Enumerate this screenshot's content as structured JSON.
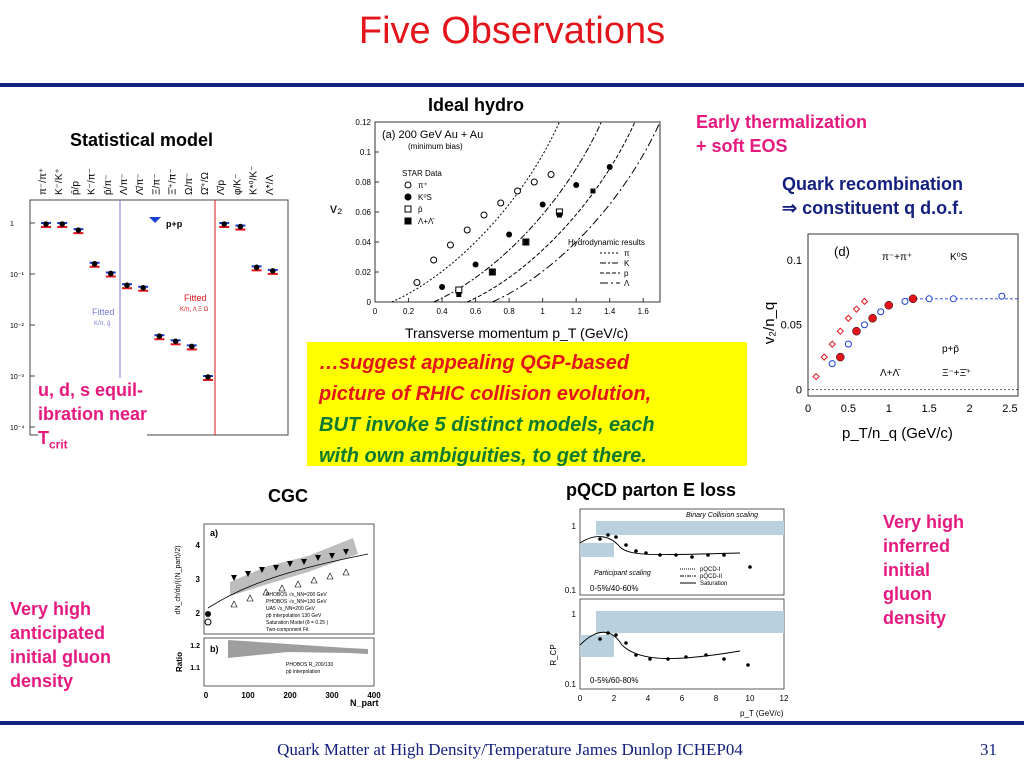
{
  "slide": {
    "title": "Five Observations",
    "footer": "Quark Matter at High Density/Temperature James Dunlop ICHEP04",
    "page_number": "31",
    "colors": {
      "title": "#e4141b",
      "rule": "#14207e",
      "pink": "#e6197f",
      "callout_bg": "#ffff00"
    }
  },
  "statistical_model": {
    "caption": "Statistical model",
    "note_lines": [
      "u, d, s equil-",
      "ibration near",
      "T"
    ],
    "note_sub": "crit",
    "ratio_labels": [
      "π⁻/π⁺",
      "K⁻/K⁺",
      "p̄/p",
      "K⁻/π⁻",
      "p̄/π⁻",
      "Λ/π⁻",
      "Λ̄/π⁻",
      "Ξ/π⁻",
      "Ξ̄⁺/π⁻",
      "Ω/π⁻",
      "Ω̄⁺/Ω",
      "Λ̄/p",
      "φ/K⁻",
      "K*⁰/K⁻",
      "Λ*/Λ"
    ],
    "y_ticks": [
      "1",
      "10⁻¹",
      "10⁻²",
      "10⁻³",
      "10⁻⁴"
    ],
    "legend": "p+p",
    "fitted_left": "Fitted",
    "fitted_left_sub": "K/π, ḡ",
    "fitted_right": "Fitted",
    "fitted_right_sub": "K/π, Λ Ξ Ω"
  },
  "hydro": {
    "caption": "Ideal hydro",
    "note_lines": [
      "Early thermalization",
      "+ soft EOS"
    ],
    "panel_label": "(a) 200 GeV Au + Au",
    "panel_sublabel": "(minimum bias)",
    "star_label": "STAR Data",
    "data_legend": [
      "π⁺",
      "K⁰S",
      "p̄",
      "Λ+Λ̄"
    ],
    "hydro_label": "Hydrodynamic results",
    "hydro_legend": [
      "π",
      "K",
      "p",
      "Λ"
    ],
    "y_axis": "v₂",
    "x_axis": "Transverse momentum p_T (GeV/c)",
    "y_ticks": [
      "0",
      "0.02",
      "0.04",
      "0.06",
      "0.08",
      "0.1",
      "0.12"
    ],
    "x_ticks": [
      "0",
      "0.2",
      "0.4",
      "0.6",
      "0.8",
      "1",
      "1.2",
      "1.4",
      "1.6"
    ]
  },
  "recombination": {
    "note_lines": [
      "Quark recombination",
      "⇒ constituent q d.o.f."
    ],
    "panel_label": "(d)",
    "legend": [
      "π⁻+π⁺",
      "K⁰S",
      "p+p̄",
      "Λ+Λ̄",
      "Ξ⁻+Ξ̄⁺"
    ],
    "y_axis": "v₂/n_q",
    "x_axis": "p_T/n_q (GeV/c)",
    "y_ticks": [
      "0",
      "0.05",
      "0.1"
    ],
    "x_ticks": [
      "0",
      "0.5",
      "1",
      "1.5",
      "2",
      "2.5"
    ]
  },
  "callout": {
    "line1": "…suggest appealing QGP-based",
    "line2": "picture of RHIC collision evolution,",
    "line3": "BUT invoke 5 distinct models, each",
    "line4": "with own ambiguities, to get there."
  },
  "cgc": {
    "caption": "CGC",
    "note_lines": [
      "Very high",
      "anticipated",
      "initial gluon",
      "density"
    ],
    "panel_a": "a)",
    "panel_b": "b)",
    "y_axis_top": "dN_ch/dη/(⟨N_part⟩/2)",
    "y_axis_bottom": "Ratio",
    "x_axis": "N_part",
    "legend": [
      "PHOBOS √s_NN=200 GeV",
      "PHOBOS √s_NN=130 GeV",
      "UA5 √s_NN=200 GeV",
      "pp̄ interpolation 130 GeV",
      "Saturation Model (δ = 0.25 )",
      "Two-component Fit"
    ],
    "legend_b": [
      "PHOBOS R_200/130",
      "pp̄ interpolation"
    ],
    "y_ticks_top": [
      "2",
      "3",
      "4"
    ],
    "y_ticks_bottom": [
      "1.1",
      "1.2"
    ],
    "x_ticks": [
      "0",
      "100",
      "200",
      "300",
      "400"
    ]
  },
  "pqcd": {
    "caption": "pQCD parton E loss",
    "note_lines": [
      "Very high",
      "inferred",
      "initial",
      "gluon",
      "density"
    ],
    "band_top": "Binary Collision scaling",
    "band_mid": "Participant scaling",
    "legend": [
      "pQCD-I",
      "pQCD-II",
      "Saturation"
    ],
    "centrality_top": "0-5%/40-60%",
    "centrality_bottom": "0-5%/60-80%",
    "y_axis": "R_CP",
    "x_axis": "p_T (GeV/c)",
    "x_ticks": [
      "0",
      "2",
      "4",
      "6",
      "8",
      "10",
      "12"
    ],
    "y_ticks": [
      "1",
      "0.1"
    ]
  },
  "chart_data": [
    {
      "type": "scatter",
      "title": "(a) 200 GeV Au + Au",
      "xlabel": "Transverse momentum p_T (GeV/c)",
      "ylabel": "v₂",
      "xlim": [
        0,
        1.7
      ],
      "ylim": [
        0,
        0.12
      ],
      "series": [
        {
          "name": "π⁺",
          "x": [
            0.25,
            0.35,
            0.45,
            0.55,
            0.65,
            0.75,
            0.85,
            0.95,
            1.05
          ],
          "y": [
            0.013,
            0.028,
            0.038,
            0.048,
            0.058,
            0.066,
            0.074,
            0.08,
            0.085
          ]
        },
        {
          "name": "K⁰S",
          "x": [
            0.4,
            0.6,
            0.8,
            1.0,
            1.2,
            1.4
          ],
          "y": [
            0.01,
            0.025,
            0.045,
            0.065,
            0.078,
            0.09
          ]
        },
        {
          "name": "p̄",
          "x": [
            0.5,
            0.7,
            0.9,
            1.1
          ],
          "y": [
            0.008,
            0.02,
            0.04,
            0.06
          ]
        },
        {
          "name": "Λ+Λ̄",
          "x": [
            0.5,
            0.7,
            0.9,
            1.1,
            1.3
          ],
          "y": [
            0.005,
            0.02,
            0.04,
            0.058,
            0.074
          ]
        }
      ]
    },
    {
      "type": "scatter",
      "title": "(d)",
      "xlabel": "p_T/n_q (GeV/c)",
      "ylabel": "v₂/n_q",
      "xlim": [
        0,
        2.6
      ],
      "ylim": [
        -0.005,
        0.12
      ],
      "series": [
        {
          "name": "π⁻+π⁺",
          "x": [
            0.1,
            0.2,
            0.3,
            0.4,
            0.5,
            0.6,
            0.7
          ],
          "y": [
            0.01,
            0.025,
            0.035,
            0.045,
            0.055,
            0.062,
            0.068
          ]
        },
        {
          "name": "K⁰S",
          "x": [
            0.3,
            0.5,
            0.7,
            0.9,
            1.2,
            1.5,
            1.8,
            2.4
          ],
          "y": [
            0.02,
            0.035,
            0.05,
            0.06,
            0.068,
            0.07,
            0.07,
            0.072
          ]
        },
        {
          "name": "Ξ⁻+Ξ̄⁺",
          "x": [
            0.4,
            0.6,
            0.8,
            1.0,
            1.3
          ],
          "y": [
            0.025,
            0.045,
            0.055,
            0.065,
            0.07
          ]
        }
      ]
    }
  ]
}
